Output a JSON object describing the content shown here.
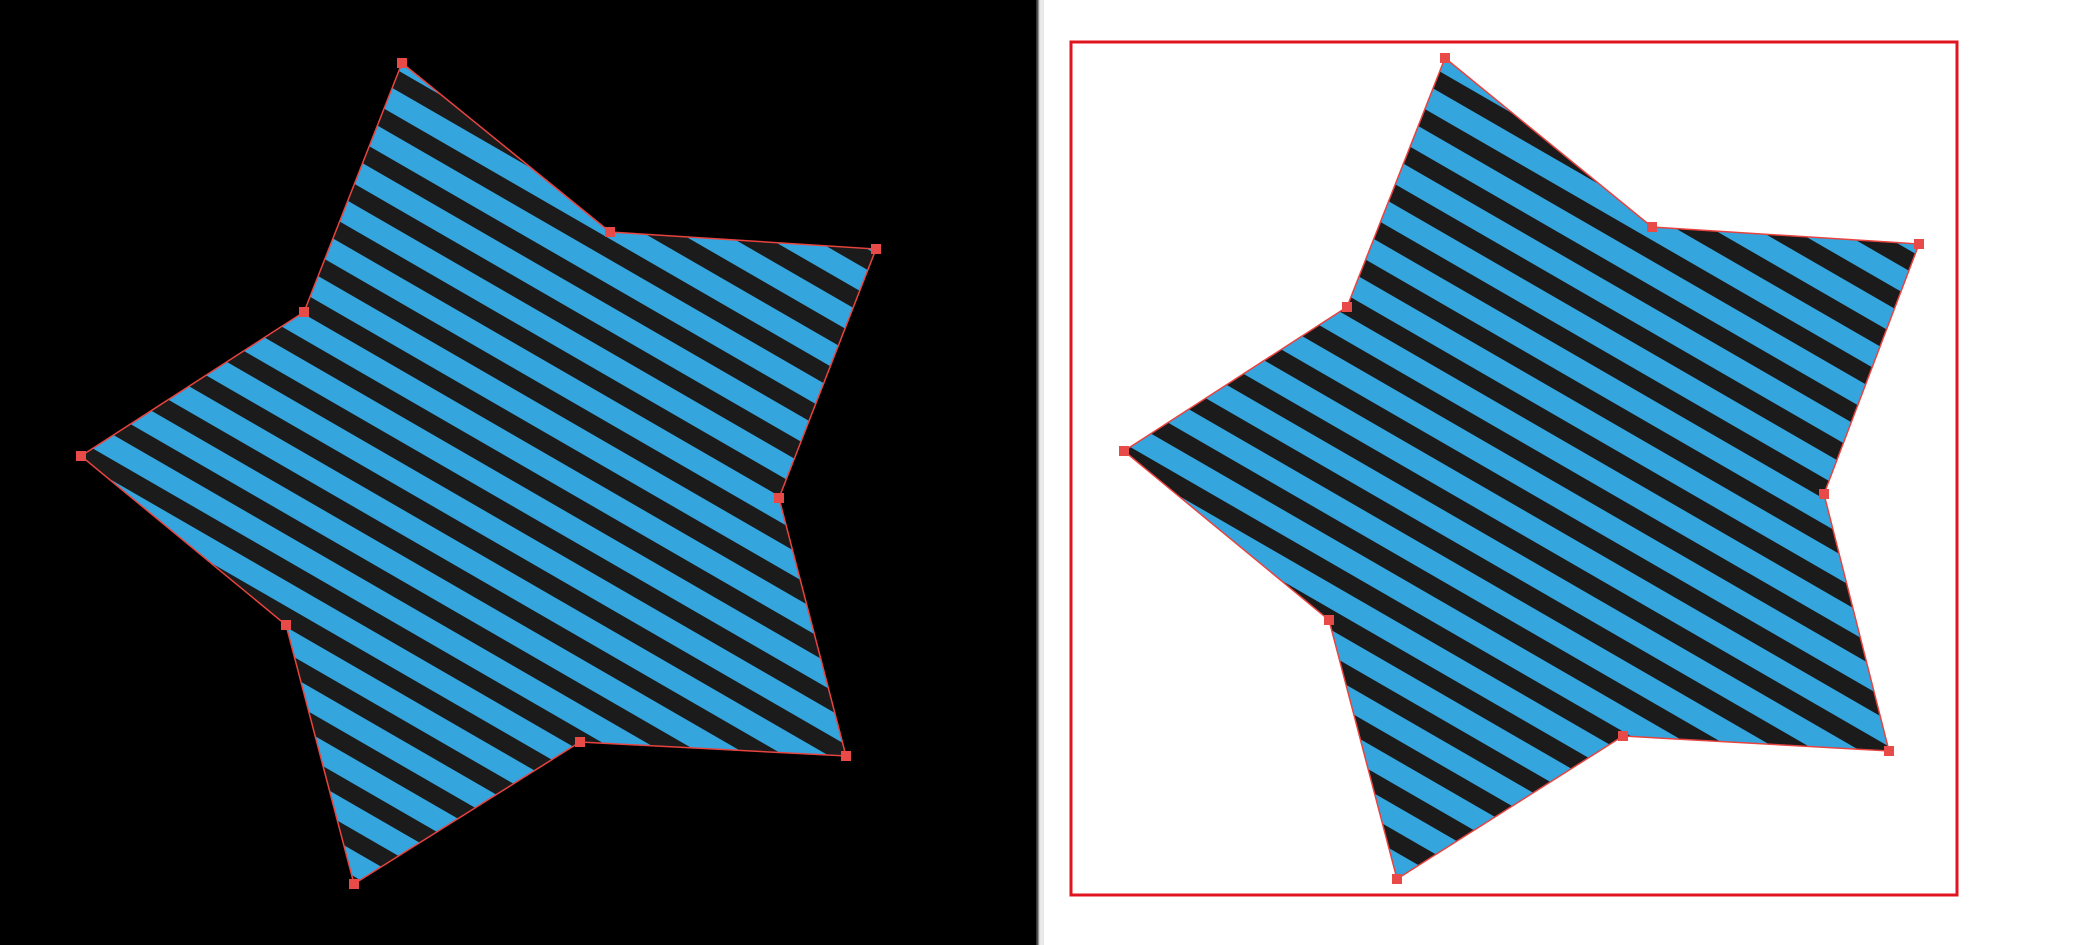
{
  "colors": {
    "left_background": "#000000",
    "right_background": "#ffffff",
    "stripe_light": "#35a5dd",
    "stripe_dark": "#1b1b1b",
    "outline": "#e8433f",
    "handle": "#e84a48",
    "frame": "#e0141e"
  },
  "left_star": {
    "name": "source-star-shape",
    "fill_pattern": "diagonal-stripes",
    "vertex_count": 10,
    "vertex_handles_visible": true
  },
  "right_star": {
    "name": "result-star-shape",
    "fill_pattern": "diagonal-stripes",
    "vertex_count": 10,
    "vertex_handles_visible": true,
    "bounding_frame_visible": true
  }
}
